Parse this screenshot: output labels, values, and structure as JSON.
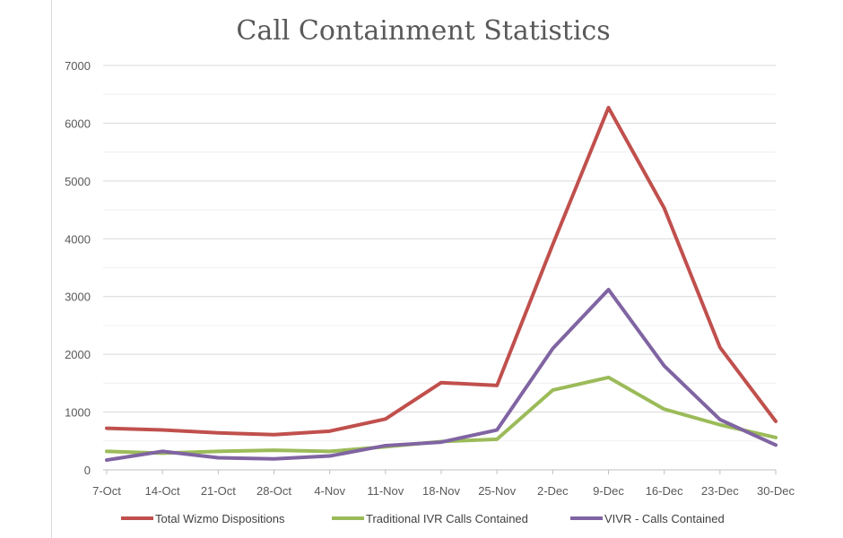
{
  "chart_data": {
    "type": "line",
    "title": "Call Containment Statistics",
    "xlabel": "",
    "ylabel": "",
    "ylim": [
      0,
      7000
    ],
    "yticks": [
      0,
      1000,
      2000,
      3000,
      4000,
      5000,
      6000,
      7000
    ],
    "grid": true,
    "legend_position": "bottom",
    "categories": [
      "7-Oct",
      "14-Oct",
      "21-Oct",
      "28-Oct",
      "4-Nov",
      "11-Nov",
      "18-Nov",
      "25-Nov",
      "2-Dec",
      "9-Dec",
      "16-Dec",
      "23-Dec",
      "30-Dec"
    ],
    "series": [
      {
        "name": "Total Wizmo Dispositions",
        "color": "#c0504d",
        "values": [
          720,
          690,
          640,
          610,
          670,
          880,
          1510,
          1460,
          3900,
          6270,
          4530,
          2120,
          840
        ]
      },
      {
        "name": "Traditional IVR Calls Contained",
        "color": "#9bbb59",
        "values": [
          320,
          290,
          320,
          340,
          320,
          400,
          490,
          530,
          1380,
          1600,
          1050,
          780,
          560
        ]
      },
      {
        "name": "VIVR - Calls Contained",
        "color": "#8064a2",
        "values": [
          170,
          320,
          210,
          190,
          240,
          420,
          480,
          690,
          2100,
          3120,
          1800,
          870,
          430
        ]
      }
    ]
  }
}
